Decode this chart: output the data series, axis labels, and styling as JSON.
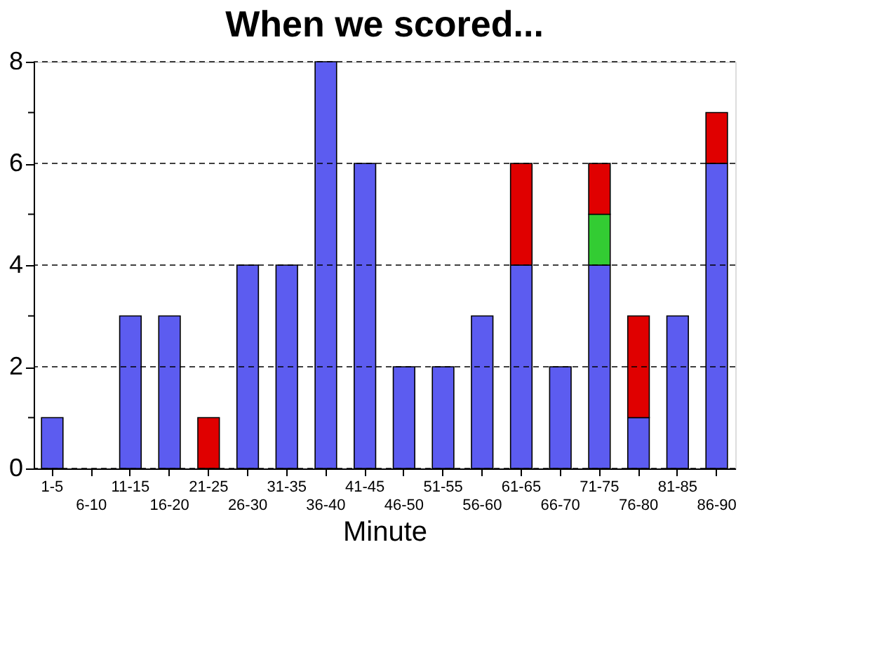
{
  "chart_data": {
    "type": "bar",
    "title": "When we scored...",
    "xlabel": "Minute",
    "stacked": true,
    "categories": [
      "1-5",
      "6-10",
      "11-15",
      "16-20",
      "21-25",
      "26-30",
      "31-35",
      "36-40",
      "41-45",
      "46-50",
      "51-55",
      "56-60",
      "61-65",
      "66-70",
      "71-75",
      "76-80",
      "81-85",
      "86-90"
    ],
    "series": [
      {
        "color": "#5c5cf0",
        "values": [
          1,
          0,
          3,
          3,
          0,
          4,
          4,
          8,
          6,
          2,
          2,
          3,
          4,
          2,
          4,
          1,
          3,
          6
        ]
      },
      {
        "color": "#33cc33",
        "values": [
          0,
          0,
          0,
          0,
          0,
          0,
          0,
          0,
          0,
          0,
          0,
          0,
          0,
          0,
          1,
          0,
          0,
          0
        ]
      },
      {
        "color": "#e00000",
        "values": [
          0,
          0,
          0,
          0,
          1,
          0,
          0,
          0,
          0,
          0,
          0,
          0,
          2,
          0,
          1,
          2,
          0,
          1
        ]
      }
    ],
    "ylim": [
      0,
      8
    ],
    "yticks": [
      0,
      {
        "value": 1,
        "label": null
      },
      2,
      {
        "value": 3,
        "label": null
      },
      4,
      {
        "value": 5,
        "label": null
      },
      6,
      {
        "value": 7,
        "label": null
      },
      8
    ],
    "grid": "y",
    "legend": false
  }
}
